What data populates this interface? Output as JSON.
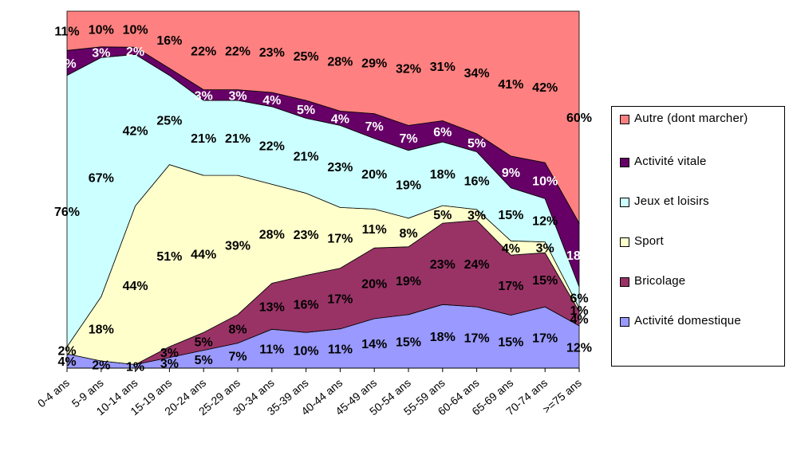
{
  "chart_data": {
    "type": "area",
    "stacked": true,
    "percent_stacked": true,
    "categories": [
      "0-4 ans",
      "5-9 ans",
      "10-14 ans",
      "15-19 ans",
      "20-24 ans",
      "25-29 ans",
      "30-34 ans",
      "35-39 ans",
      "40-44 ans",
      "45-49 ans",
      "50-54 ans",
      "55-59 ans",
      "60-64 ans",
      "65-69 ans",
      "70-74 ans",
      ">=75 ans"
    ],
    "series": [
      {
        "name": "Activité domestique",
        "color": "#9999ff",
        "values": [
          4,
          2,
          1,
          3,
          5,
          7,
          11,
          10,
          11,
          14,
          15,
          18,
          17,
          15,
          17,
          12
        ],
        "labels": [
          "4%",
          "2%",
          "1%",
          "3%",
          "5%",
          "7%",
          "11%",
          "10%",
          "11%",
          "14%",
          "15%",
          "18%",
          "17%",
          "15%",
          "17%",
          "12%"
        ]
      },
      {
        "name": "Bricolage",
        "color": "#993366",
        "values": [
          0,
          0,
          0,
          3,
          5,
          8,
          13,
          16,
          17,
          20,
          19,
          23,
          24,
          17,
          15,
          4
        ],
        "labels": [
          "",
          "",
          "",
          "3%",
          "5%",
          "8%",
          "13%",
          "16%",
          "17%",
          "20%",
          "19%",
          "23%",
          "24%",
          "17%",
          "15%",
          "4%"
        ]
      },
      {
        "name": "Sport",
        "color": "#ffffcc",
        "values": [
          2,
          18,
          44,
          51,
          44,
          39,
          28,
          23,
          17,
          11,
          8,
          5,
          3,
          4,
          3,
          1
        ],
        "labels": [
          "2%",
          "18%",
          "44%",
          "51%",
          "44%",
          "39%",
          "28%",
          "23%",
          "17%",
          "11%",
          "8%",
          "5%",
          "3%",
          "4%",
          "3%",
          "1%"
        ]
      },
      {
        "name": "Jeux et loisirs",
        "color": "#ccffff",
        "values": [
          76,
          67,
          42,
          25,
          21,
          21,
          22,
          21,
          23,
          20,
          19,
          18,
          16,
          15,
          12,
          6
        ],
        "labels": [
          "76%",
          "67%",
          "42%",
          "25%",
          "21%",
          "21%",
          "22%",
          "21%",
          "23%",
          "20%",
          "19%",
          "18%",
          "16%",
          "15%",
          "12%",
          "6%"
        ]
      },
      {
        "name": "Activité vitale",
        "color": "#660066",
        "values": [
          7,
          3,
          2,
          2,
          3,
          3,
          4,
          5,
          4,
          7,
          7,
          6,
          5,
          9,
          10,
          18
        ],
        "labels": [
          "7%",
          "3%",
          "2%",
          "",
          "3%",
          "3%",
          "4%",
          "5%",
          "4%",
          "7%",
          "7%",
          "6%",
          "5%",
          "9%",
          "10%",
          "18%"
        ]
      },
      {
        "name": "Autre (dont marcher)",
        "color": "#ff8080",
        "values": [
          11,
          10,
          10,
          16,
          22,
          22,
          23,
          25,
          28,
          29,
          32,
          31,
          34,
          41,
          42,
          60
        ],
        "labels": [
          "11%",
          "10%",
          "10%",
          "16%",
          "22%",
          "22%",
          "23%",
          "25%",
          "28%",
          "29%",
          "32%",
          "31%",
          "34%",
          "41%",
          "42%",
          "60%"
        ]
      }
    ],
    "legend_order": [
      "Autre (dont marcher)",
      "Activité vitale",
      "Jeux et loisirs",
      "Sport",
      "Bricolage",
      "Activité domestique"
    ],
    "legend_position": "right",
    "ylim": [
      0,
      100
    ],
    "grid": false,
    "title": "",
    "xlabel": "",
    "ylabel": ""
  }
}
